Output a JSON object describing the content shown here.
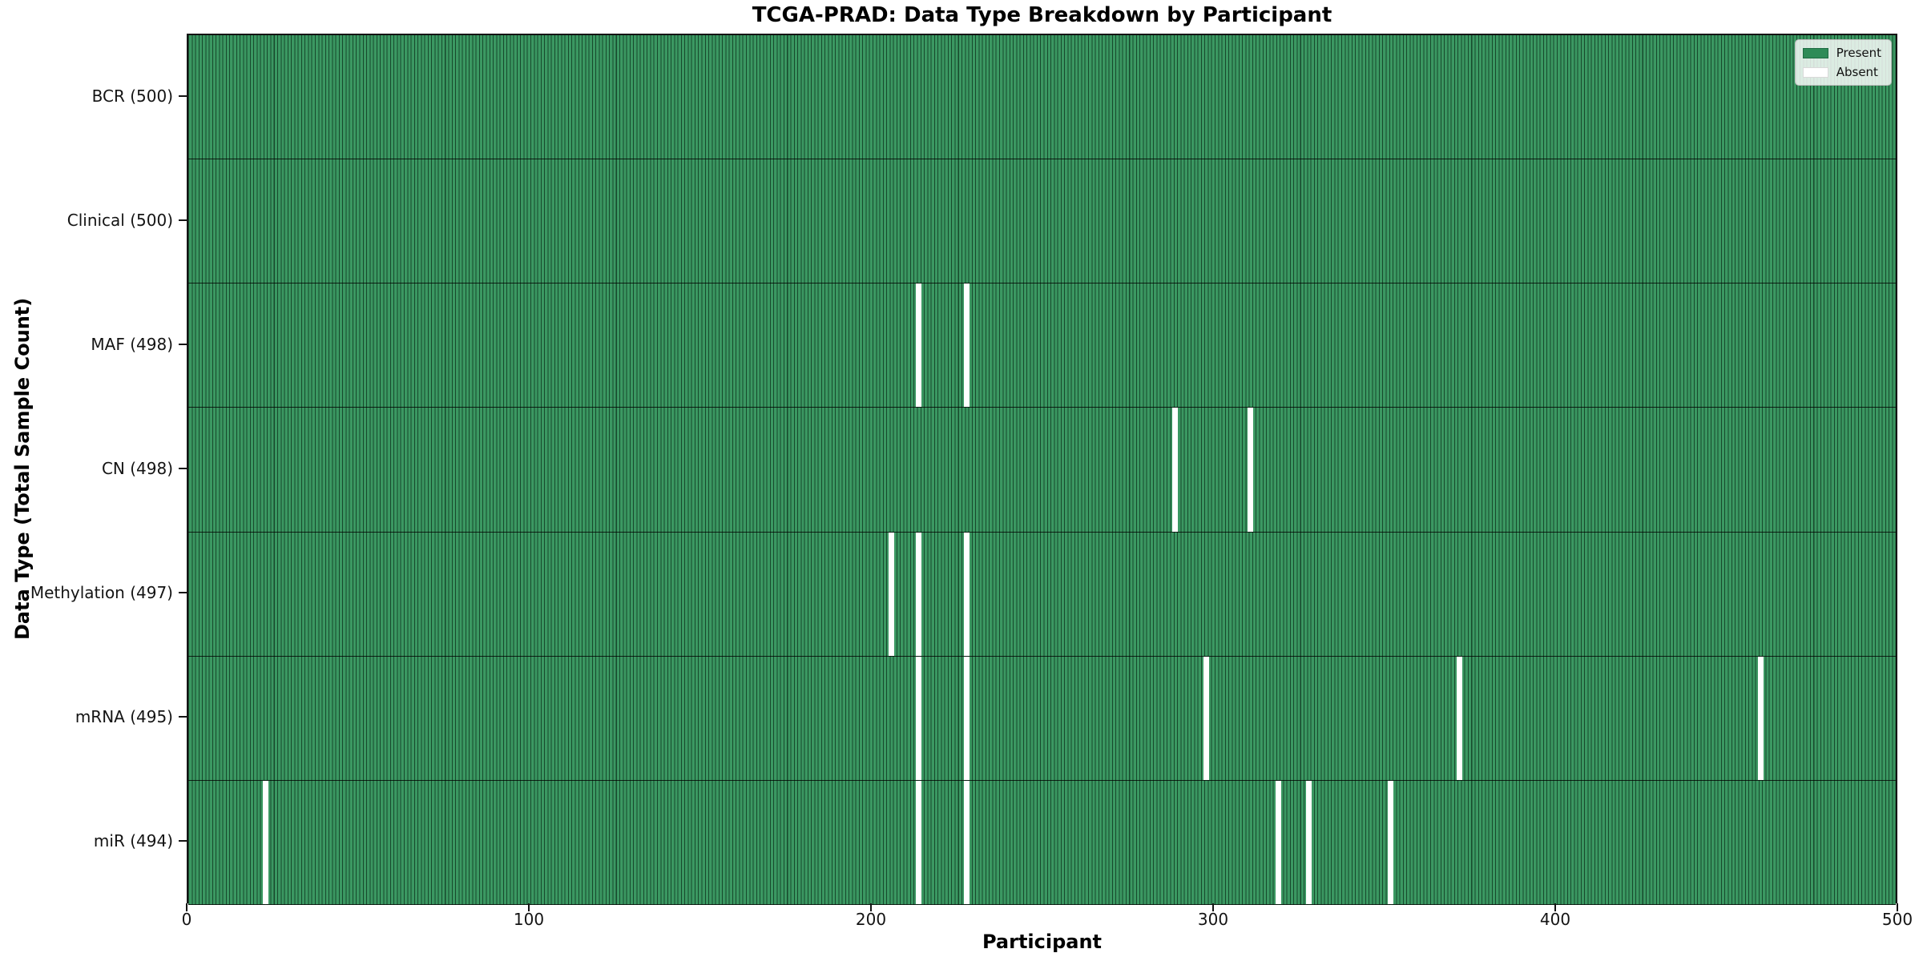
{
  "chart_data": {
    "type": "heatmap",
    "title": "TCGA-PRAD: Data Type Breakdown by Participant",
    "xlabel": "Participant",
    "ylabel": "Data Type (Total Sample Count)",
    "x_range": [
      0,
      500
    ],
    "x_ticks": [
      0,
      100,
      200,
      300,
      400,
      500
    ],
    "n_participants": 500,
    "cell_states": {
      "present": 1,
      "absent": 0
    },
    "legend": [
      {
        "label": "Present",
        "color": "#2E8B57",
        "border": "#1F6B42"
      },
      {
        "label": "Absent",
        "color": "#FFFFFF",
        "border": "#D9D9D9"
      }
    ],
    "rows": [
      {
        "id": "bcr",
        "label": "BCR (500)",
        "data_type": "BCR",
        "present_count": 500,
        "absent_participants": []
      },
      {
        "id": "clinical",
        "label": "Clinical (500)",
        "data_type": "Clinical",
        "present_count": 500,
        "absent_participants": []
      },
      {
        "id": "maf",
        "label": "MAF (498)",
        "data_type": "MAF",
        "present_count": 498,
        "absent_participants": [
          213,
          227
        ]
      },
      {
        "id": "cn",
        "label": "CN (498)",
        "data_type": "CN",
        "present_count": 498,
        "absent_participants": [
          288,
          310
        ]
      },
      {
        "id": "methylation",
        "label": "Methylation (497)",
        "data_type": "Methylation",
        "present_count": 497,
        "absent_participants": [
          205,
          213,
          227
        ]
      },
      {
        "id": "mrna",
        "label": "mRNA (495)",
        "data_type": "mRNA",
        "present_count": 495,
        "absent_participants": [
          213,
          227,
          297,
          371,
          459
        ]
      },
      {
        "id": "mir",
        "label": "miR (494)",
        "data_type": "miR",
        "present_count": 494,
        "absent_participants": [
          22,
          213,
          227,
          318,
          327,
          351
        ]
      }
    ],
    "colors": {
      "present_fill": "#3B9862",
      "bar_edge": "#17492C",
      "absent_fill": "#FFFFFF",
      "legend_present": "#2E8B57",
      "axis": "#141414"
    },
    "layout_hints": {
      "legend_position": "upper right",
      "grid": false
    }
  }
}
